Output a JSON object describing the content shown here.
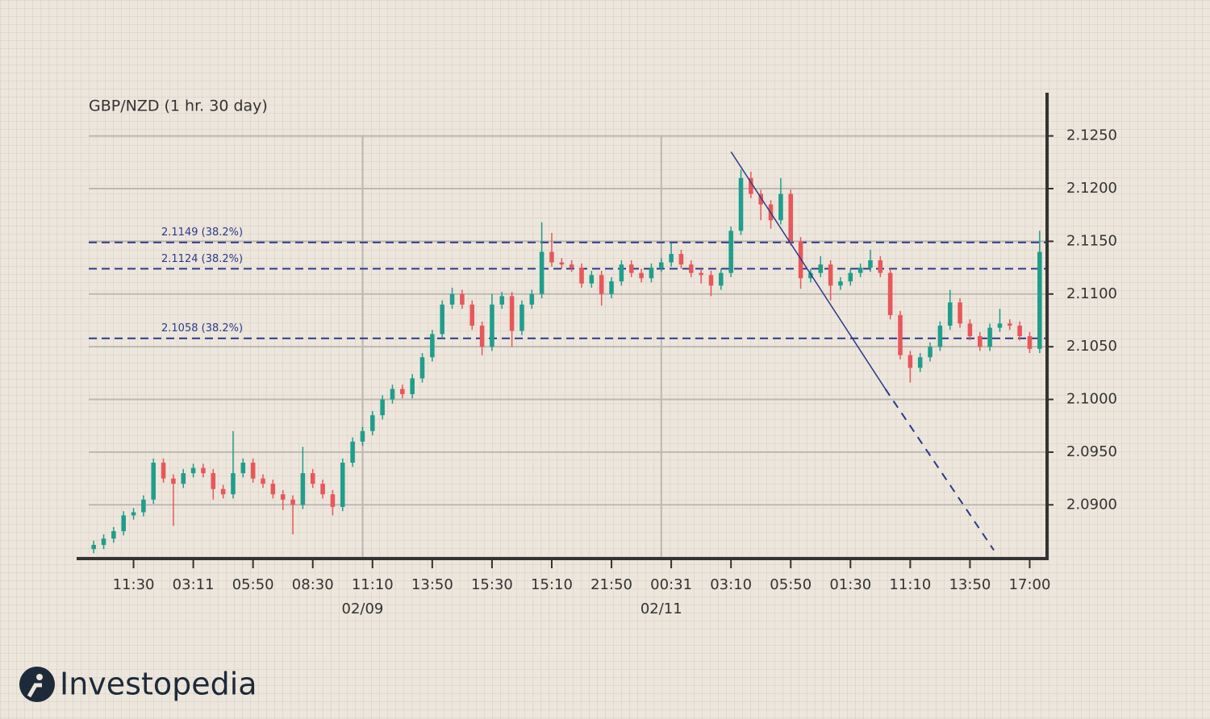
{
  "chart_data": {
    "type": "candlestick",
    "title": "GBP/NZD (1 hr.  30 day)",
    "categories": [
      null,
      null,
      null,
      null,
      "11:30",
      null,
      null,
      null,
      null,
      null,
      "03:11",
      null,
      null,
      null,
      null,
      null,
      "05:50",
      null,
      null,
      null,
      null,
      null,
      "08:30",
      null,
      null,
      null,
      null,
      null,
      "11:10",
      null,
      null,
      null,
      null,
      null,
      "13:50",
      null,
      null,
      null,
      null,
      null,
      "15:30",
      null,
      null,
      null,
      null,
      null,
      "15:10",
      null,
      null,
      null,
      null,
      null,
      "21:50",
      null,
      null,
      null,
      null,
      null,
      "00:31",
      null,
      null,
      null,
      null,
      null,
      "03:10",
      null,
      null,
      null,
      null,
      null,
      "05:50",
      null,
      null,
      null,
      null,
      null,
      "01:30",
      null,
      null,
      null,
      null,
      null,
      "11:10",
      null,
      null,
      null,
      null,
      null,
      "13:50",
      null,
      null,
      null,
      null,
      null,
      "17:00",
      null
    ],
    "date_labels": [
      null,
      null,
      null,
      null,
      null,
      null,
      null,
      null,
      null,
      null,
      null,
      null,
      null,
      null,
      null,
      null,
      null,
      null,
      null,
      null,
      null,
      null,
      null,
      null,
      null,
      null,
      null,
      "02/09",
      null,
      null,
      null,
      null,
      null,
      null,
      null,
      null,
      null,
      null,
      null,
      null,
      null,
      null,
      null,
      null,
      null,
      null,
      null,
      null,
      null,
      null,
      null,
      null,
      null,
      null,
      null,
      null,
      null,
      "02/11",
      null,
      null,
      null,
      null,
      null,
      null,
      null,
      null,
      null,
      null,
      null,
      null,
      null,
      null,
      null,
      null,
      null,
      null,
      null,
      null,
      null,
      null,
      null,
      null,
      null,
      null,
      null,
      null,
      null,
      null,
      null,
      null,
      null,
      null,
      null,
      null
    ],
    "open": [
      2.0858,
      2.0862,
      2.0868,
      2.0875,
      2.089,
      2.0893,
      2.0905,
      2.094,
      2.0925,
      2.092,
      2.093,
      2.0935,
      2.093,
      2.0915,
      2.091,
      2.093,
      2.094,
      2.0925,
      2.092,
      2.091,
      2.0905,
      2.09,
      2.093,
      2.092,
      2.091,
      2.0898,
      2.094,
      2.096,
      2.097,
      2.0985,
      2.1,
      2.101,
      2.1005,
      2.102,
      2.104,
      2.1062,
      2.109,
      2.11,
      2.109,
      2.107,
      2.105,
      2.109,
      2.1098,
      2.1065,
      2.109,
      2.11,
      2.114,
      2.113,
      2.1128,
      2.1125,
      2.111,
      2.1118,
      2.11,
      2.1112,
      2.1128,
      2.112,
      2.1115,
      2.1125,
      2.113,
      2.1138,
      2.1128,
      2.112,
      2.1118,
      2.1108,
      2.112,
      2.116,
      2.121,
      2.1195,
      2.1185,
      2.117,
      2.1195,
      2.115,
      2.1115,
      2.112,
      2.1128,
      2.1108,
      2.1112,
      2.112,
      2.1125,
      2.1132,
      2.112,
      2.108,
      2.1042,
      2.103,
      2.104,
      2.105,
      2.107,
      2.1092,
      2.1072,
      2.106,
      2.105,
      2.1068,
      2.1072,
      2.107,
      2.106,
      2.1048
    ],
    "high": [
      2.0866,
      2.0872,
      2.0879,
      2.0894,
      2.0897,
      2.0909,
      2.0944,
      2.0944,
      2.0929,
      2.0934,
      2.0939,
      2.0939,
      2.0934,
      2.0919,
      2.097,
      2.0944,
      2.0944,
      2.0929,
      2.0924,
      2.0914,
      2.0909,
      2.0955,
      2.0934,
      2.0924,
      2.0914,
      2.0944,
      2.0964,
      2.0974,
      2.0989,
      2.1004,
      2.1014,
      2.1014,
      2.1024,
      2.1044,
      2.1066,
      2.1094,
      2.1106,
      2.1104,
      2.1094,
      2.1074,
      2.11,
      2.1102,
      2.1102,
      2.1094,
      2.1104,
      2.1168,
      2.1158,
      2.1134,
      2.1132,
      2.1129,
      2.1122,
      2.1122,
      2.1116,
      2.1132,
      2.1132,
      2.1124,
      2.1129,
      2.1134,
      2.1148,
      2.1142,
      2.1132,
      2.1124,
      2.1122,
      2.1124,
      2.1164,
      2.1218,
      2.1216,
      2.1199,
      2.1189,
      2.121,
      2.1199,
      2.1154,
      2.1124,
      2.1136,
      2.1132,
      2.1116,
      2.1124,
      2.1129,
      2.1142,
      2.1136,
      2.1124,
      2.1084,
      2.1046,
      2.1044,
      2.1054,
      2.1074,
      2.1104,
      2.1096,
      2.1076,
      2.1064,
      2.1072,
      2.1086,
      2.1076,
      2.1074,
      2.1064,
      2.116
    ],
    "low": [
      2.0854,
      2.0858,
      2.0864,
      2.0871,
      2.0886,
      2.0889,
      2.0901,
      2.0921,
      2.088,
      2.0916,
      2.0926,
      2.0926,
      2.0905,
      2.0906,
      2.0906,
      2.0926,
      2.0921,
      2.0916,
      2.0906,
      2.0895,
      2.0872,
      2.0896,
      2.0916,
      2.0906,
      2.089,
      2.0894,
      2.0936,
      2.0956,
      2.0966,
      2.0981,
      2.0996,
      2.1001,
      2.1001,
      2.1016,
      2.1036,
      2.1058,
      2.1086,
      2.1086,
      2.1066,
      2.1042,
      2.1046,
      2.1086,
      2.105,
      2.1061,
      2.1086,
      2.1096,
      2.1126,
      2.1124,
      2.1121,
      2.1106,
      2.1106,
      2.1089,
      2.1096,
      2.1108,
      2.1116,
      2.1111,
      2.1111,
      2.1121,
      2.1126,
      2.1124,
      2.1116,
      2.111,
      2.1098,
      2.1104,
      2.1116,
      2.1156,
      2.1191,
      2.117,
      2.1162,
      2.1166,
      2.1146,
      2.1105,
      2.1111,
      2.1116,
      2.1094,
      2.1104,
      2.1108,
      2.1116,
      2.1121,
      2.1116,
      2.1076,
      2.1038,
      2.1016,
      2.1026,
      2.1036,
      2.1046,
      2.1066,
      2.1068,
      2.1056,
      2.1046,
      2.1046,
      2.1064,
      2.1066,
      2.1056,
      2.1044,
      2.1044
    ],
    "close": [
      2.0862,
      2.0868,
      2.0875,
      2.089,
      2.0893,
      2.0905,
      2.094,
      2.0925,
      2.092,
      2.093,
      2.0935,
      2.093,
      2.0915,
      2.091,
      2.093,
      2.094,
      2.0925,
      2.092,
      2.091,
      2.0905,
      2.09,
      2.093,
      2.092,
      2.091,
      2.0898,
      2.094,
      2.096,
      2.097,
      2.0985,
      2.1,
      2.101,
      2.1005,
      2.102,
      2.104,
      2.1062,
      2.109,
      2.11,
      2.109,
      2.107,
      2.105,
      2.109,
      2.1098,
      2.1065,
      2.109,
      2.11,
      2.114,
      2.113,
      2.1128,
      2.1125,
      2.111,
      2.1118,
      2.11,
      2.1112,
      2.1128,
      2.112,
      2.1115,
      2.1125,
      2.113,
      2.1138,
      2.1128,
      2.112,
      2.1118,
      2.1108,
      2.112,
      2.116,
      2.121,
      2.1195,
      2.1185,
      2.117,
      2.1195,
      2.115,
      2.1115,
      2.112,
      2.1128,
      2.1108,
      2.1112,
      2.112,
      2.1125,
      2.1132,
      2.112,
      2.108,
      2.1042,
      2.103,
      2.104,
      2.105,
      2.107,
      2.1092,
      2.1072,
      2.106,
      2.105,
      2.1068,
      2.1072,
      2.107,
      2.106,
      2.1048,
      2.114
    ],
    "up_color": "#1f9e8c",
    "down_color": "#e8575a",
    "ylim": [
      2.0849,
      2.1291
    ],
    "yticks": [
      {
        "value": 2.125,
        "label": "2.1250"
      },
      {
        "value": 2.12,
        "label": "2.1200"
      },
      {
        "value": 2.115,
        "label": "2.1150"
      },
      {
        "value": 2.11,
        "label": "2.1100"
      },
      {
        "value": 2.105,
        "label": "2.1050"
      },
      {
        "value": 2.1,
        "label": "2.1000"
      },
      {
        "value": 2.095,
        "label": "2.0950"
      },
      {
        "value": 2.09,
        "label": "2.0900"
      }
    ],
    "grid": true,
    "levels": [
      {
        "value": 2.1149,
        "label": "2.1149 (38.2%)"
      },
      {
        "value": 2.1124,
        "label": "2.1124 (38.2%)"
      },
      {
        "value": 2.1058,
        "label": "2.1058 (38.2%)"
      }
    ],
    "level_color": "#2b3a8c",
    "trendline": {
      "x": [
        64,
        79.5,
        90.4
      ],
      "y": [
        2.1235,
        2.101,
        2.0857
      ]
    }
  },
  "logo": "Investopedia"
}
